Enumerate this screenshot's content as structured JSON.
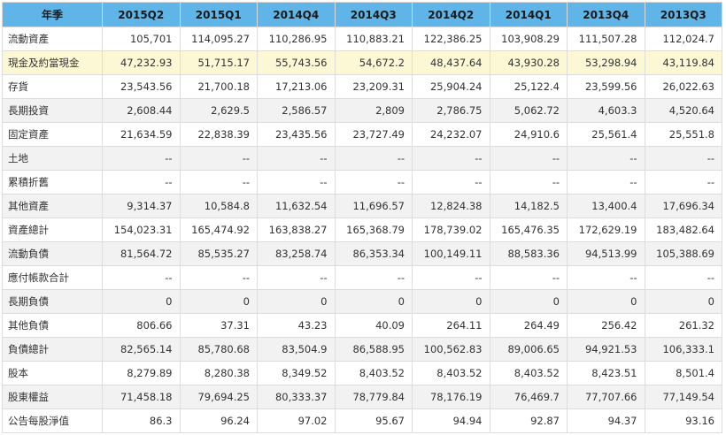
{
  "table": {
    "corner_header": "年季",
    "columns": [
      "2015Q2",
      "2015Q1",
      "2014Q4",
      "2014Q3",
      "2014Q2",
      "2014Q1",
      "2013Q4",
      "2013Q3"
    ],
    "rows": [
      {
        "label": "流動資產",
        "values": [
          "105,701",
          "114,095.27",
          "110,286.95",
          "110,883.21",
          "122,386.25",
          "103,908.29",
          "111,507.28",
          "112,024.7"
        ]
      },
      {
        "label": "現金及約當現金",
        "values": [
          "47,232.93",
          "51,715.17",
          "55,743.56",
          "54,672.2",
          "48,437.64",
          "43,930.28",
          "53,298.94",
          "43,119.84"
        ]
      },
      {
        "label": "存貨",
        "values": [
          "23,543.56",
          "21,700.18",
          "17,213.06",
          "23,209.31",
          "25,904.24",
          "25,122.4",
          "23,599.56",
          "26,022.63"
        ]
      },
      {
        "label": "長期投資",
        "values": [
          "2,608.44",
          "2,629.5",
          "2,586.57",
          "2,809",
          "2,786.75",
          "5,062.72",
          "4,603.3",
          "4,520.64"
        ]
      },
      {
        "label": "固定資產",
        "values": [
          "21,634.59",
          "22,838.39",
          "23,435.56",
          "23,727.49",
          "24,232.07",
          "24,910.6",
          "25,561.4",
          "25,551.8"
        ]
      },
      {
        "label": "土地",
        "values": [
          "--",
          "--",
          "--",
          "--",
          "--",
          "--",
          "--",
          "--"
        ]
      },
      {
        "label": "累積折舊",
        "values": [
          "--",
          "--",
          "--",
          "--",
          "--",
          "--",
          "--",
          "--"
        ]
      },
      {
        "label": "其他資產",
        "values": [
          "9,314.37",
          "10,584.8",
          "11,632.54",
          "11,696.57",
          "12,824.38",
          "14,182.5",
          "13,400.4",
          "17,696.34"
        ]
      },
      {
        "label": "資產總計",
        "values": [
          "154,023.31",
          "165,474.92",
          "163,838.27",
          "165,368.79",
          "178,739.02",
          "165,476.35",
          "172,629.19",
          "183,482.64"
        ]
      },
      {
        "label": "流動負債",
        "values": [
          "81,564.72",
          "85,535.27",
          "83,258.74",
          "86,353.34",
          "100,149.11",
          "88,583.36",
          "94,513.99",
          "105,388.69"
        ]
      },
      {
        "label": "應付帳款合計",
        "values": [
          "--",
          "--",
          "--",
          "--",
          "--",
          "--",
          "--",
          "--"
        ]
      },
      {
        "label": "長期負債",
        "values": [
          "0",
          "0",
          "0",
          "0",
          "0",
          "0",
          "0",
          "0"
        ]
      },
      {
        "label": "其他負債",
        "values": [
          "806.66",
          "37.31",
          "43.23",
          "40.09",
          "264.11",
          "264.49",
          "256.42",
          "261.32"
        ]
      },
      {
        "label": "負債總計",
        "values": [
          "82,565.14",
          "85,780.68",
          "83,504.9",
          "86,588.95",
          "100,562.83",
          "89,006.65",
          "94,921.53",
          "106,333.1"
        ]
      },
      {
        "label": "股本",
        "values": [
          "8,279.89",
          "8,280.38",
          "8,349.52",
          "8,403.52",
          "8,403.52",
          "8,403.52",
          "8,423.51",
          "8,501.4"
        ]
      },
      {
        "label": "股東權益",
        "values": [
          "71,458.18",
          "79,694.25",
          "80,333.37",
          "78,779.84",
          "78,176.19",
          "76,469.7",
          "77,707.66",
          "77,149.54"
        ]
      },
      {
        "label": "公告每股淨值",
        "values": [
          "86.3",
          "96.24",
          "97.02",
          "95.67",
          "94.94",
          "92.87",
          "94.37",
          "93.16"
        ]
      }
    ]
  },
  "colors": {
    "header_bg": "#5fb5e7",
    "highlight_row_bg": "#fcf7d5",
    "even_row_bg": "#f2f2f2"
  }
}
